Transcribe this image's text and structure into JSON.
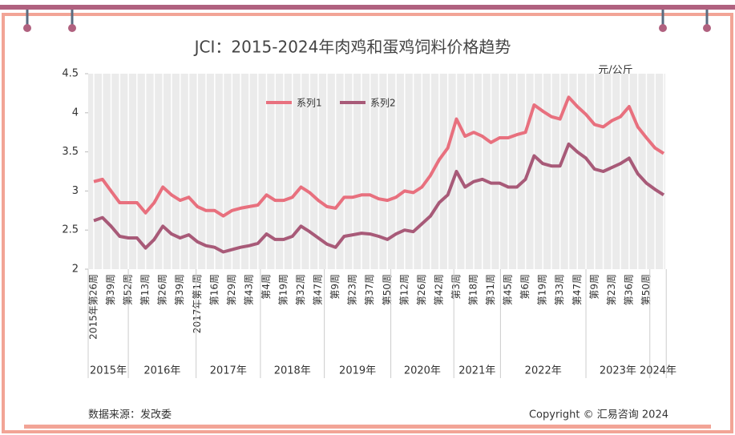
{
  "chart_data": {
    "type": "line",
    "title": "JCI：2015-2024年肉鸡和蛋鸡饲料价格趋势",
    "unit": "元/公斤",
    "source": "数据来源：发改委",
    "copyright": "Copyright © 汇易咨询 2024",
    "categories": [
      "2015年第26周",
      null,
      "第39周",
      null,
      "第52周",
      null,
      "第13周",
      null,
      "第26周",
      null,
      "第39周",
      null,
      "2017年第1周",
      null,
      "第16周",
      null,
      "第29周",
      null,
      "第43周",
      null,
      "第4周",
      null,
      "第19周",
      null,
      "第32周",
      null,
      "第47周",
      null,
      "第9周",
      null,
      "第23周",
      null,
      "第37周",
      null,
      "第50周",
      null,
      "第12周",
      null,
      "第26周",
      null,
      "第42周",
      null,
      "第3周",
      null,
      "第18周",
      null,
      "第31周",
      null,
      "第45周",
      null,
      "第6周",
      null,
      "第19周",
      null,
      "第33周",
      null,
      "第47周",
      null,
      "第9周",
      null,
      "第23周",
      null,
      "第36周",
      null,
      "第50周",
      null,
      null
    ],
    "x_groups": [
      "2015年",
      "2016年",
      "2017年",
      "2018年",
      "2019年",
      "2020年",
      "2021年",
      "2022年",
      "2023年",
      "2024年"
    ],
    "series": [
      {
        "name": "系列1",
        "color": "#e8707e",
        "values": [
          3.12,
          3.15,
          3.0,
          2.85,
          2.85,
          2.85,
          2.72,
          2.85,
          3.05,
          2.95,
          2.88,
          2.92,
          2.8,
          2.75,
          2.75,
          2.68,
          2.75,
          2.78,
          2.8,
          2.82,
          2.95,
          2.88,
          2.88,
          2.92,
          3.05,
          2.98,
          2.88,
          2.8,
          2.78,
          2.92,
          2.92,
          2.95,
          2.95,
          2.9,
          2.88,
          2.92,
          3.0,
          2.98,
          3.05,
          3.2,
          3.4,
          3.55,
          3.92,
          3.7,
          3.75,
          3.7,
          3.62,
          3.68,
          3.68,
          3.72,
          3.75,
          4.1,
          4.02,
          3.95,
          3.92,
          4.2,
          4.08,
          3.98,
          3.85,
          3.82,
          3.9,
          3.95,
          4.08,
          3.82,
          3.68,
          3.55,
          3.48
        ]
      },
      {
        "name": "系列2",
        "color": "#a85a78",
        "values": [
          2.62,
          2.66,
          2.55,
          2.42,
          2.4,
          2.4,
          2.27,
          2.38,
          2.55,
          2.45,
          2.4,
          2.44,
          2.35,
          2.3,
          2.28,
          2.22,
          2.25,
          2.28,
          2.3,
          2.33,
          2.45,
          2.38,
          2.38,
          2.42,
          2.55,
          2.48,
          2.4,
          2.32,
          2.28,
          2.42,
          2.44,
          2.46,
          2.45,
          2.42,
          2.38,
          2.45,
          2.5,
          2.48,
          2.58,
          2.68,
          2.85,
          2.95,
          3.25,
          3.05,
          3.12,
          3.15,
          3.1,
          3.1,
          3.05,
          3.05,
          3.15,
          3.45,
          3.35,
          3.32,
          3.32,
          3.6,
          3.5,
          3.42,
          3.28,
          3.25,
          3.3,
          3.35,
          3.42,
          3.22,
          3.1,
          3.02,
          2.95
        ]
      }
    ],
    "ylim": [
      2,
      4.5
    ],
    "yticks": [
      2,
      2.5,
      3,
      3.5,
      4,
      4.5
    ]
  }
}
